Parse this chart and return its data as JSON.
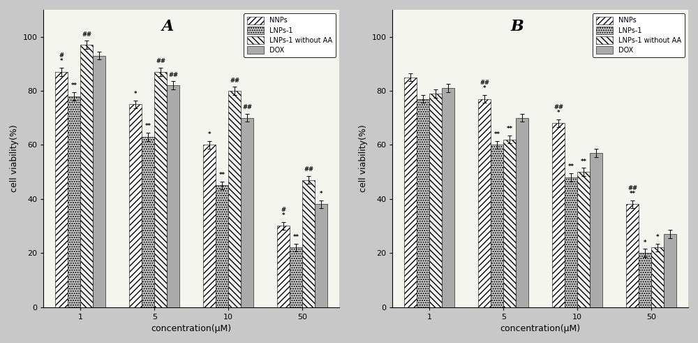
{
  "concentrations": [
    "1",
    "5",
    "10",
    "50"
  ],
  "panel_A": {
    "NNPs": [
      87,
      75,
      60,
      30
    ],
    "LNPs1": [
      78,
      63,
      45,
      22
    ],
    "LNPs1_without_AA": [
      97,
      87,
      80,
      47
    ],
    "DOX": [
      93,
      82,
      70,
      38
    ],
    "NNPs_err": [
      1.5,
      1.5,
      1.5,
      1.5
    ],
    "LNPs1_err": [
      1.5,
      1.5,
      1.5,
      1.5
    ],
    "LNPs1_without_AA_err": [
      1.5,
      1.5,
      1.5,
      1.5
    ],
    "DOX_err": [
      1.5,
      1.5,
      1.5,
      1.5
    ]
  },
  "panel_B": {
    "NNPs": [
      85,
      77,
      68,
      38
    ],
    "LNPs1": [
      77,
      60,
      48,
      20
    ],
    "LNPs1_without_AA": [
      79,
      62,
      50,
      22
    ],
    "DOX": [
      81,
      70,
      57,
      27
    ],
    "NNPs_err": [
      1.5,
      1.5,
      1.5,
      1.5
    ],
    "LNPs1_err": [
      1.5,
      1.5,
      1.5,
      1.5
    ],
    "LNPs1_without_AA_err": [
      1.5,
      1.5,
      1.5,
      1.5
    ],
    "DOX_err": [
      1.5,
      1.5,
      1.5,
      1.5
    ]
  },
  "colors": {
    "NNPs": "#ffffff",
    "LNPs1": "#cccccc",
    "LNPs1_without_AA": "#f0f0f0",
    "DOX": "#aaaaaa"
  },
  "hatches": {
    "NNPs": "////",
    "LNPs1": "....",
    "LNPs1_without_AA": "////",
    "DOX": ""
  },
  "hatch_density": {
    "NNPs": 4,
    "LNPs1": 6,
    "LNPs1_without_AA": 3,
    "DOX": 0
  },
  "ylabel": "cell viability(%)",
  "xlabel": "concentration(μM)",
  "title_A": "A",
  "title_B": "B",
  "ylim": [
    0,
    110
  ],
  "yticks": [
    0,
    20,
    40,
    60,
    80,
    100
  ],
  "legend_labels": [
    "NNPs",
    "LNPs-1",
    "LNPs-1 without AA",
    "DOX"
  ],
  "bar_width": 0.17,
  "fig_bg": "#c8c8c8",
  "axes_bg": "#f5f5f0",
  "annot_A": {
    "0": {
      "NNPs": "#\n*",
      "LNPs1": "**",
      "LNPs1_without_AA": "##",
      "DOX": ""
    },
    "1": {
      "NNPs": "*",
      "LNPs1": "**",
      "LNPs1_without_AA": "##",
      "DOX": "##"
    },
    "2": {
      "NNPs": "*",
      "LNPs1": "**",
      "LNPs1_without_AA": "##",
      "DOX": "##"
    },
    "3": {
      "NNPs": "#\n*",
      "LNPs1": "**",
      "LNPs1_without_AA": "##",
      "DOX": "*"
    }
  },
  "annot_B": {
    "0": {
      "NNPs": "",
      "LNPs1": "",
      "LNPs1_without_AA": "",
      "DOX": ""
    },
    "1": {
      "NNPs": "##\n*",
      "LNPs1": "**",
      "LNPs1_without_AA": "**",
      "DOX": ""
    },
    "2": {
      "NNPs": "##\n*",
      "LNPs1": "**",
      "LNPs1_without_AA": "**",
      "DOX": ""
    },
    "3": {
      "NNPs": "##\n**",
      "LNPs1": "*",
      "LNPs1_without_AA": "*",
      "DOX": ""
    }
  }
}
